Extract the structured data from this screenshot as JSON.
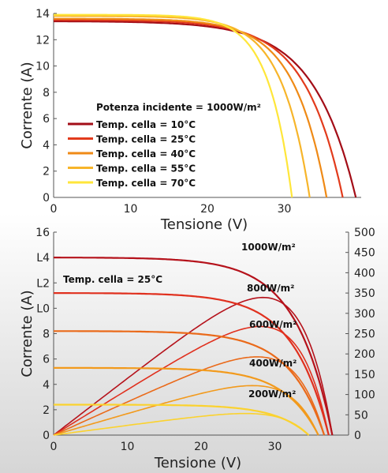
{
  "colors": {
    "t10": "#a30d17",
    "t25": "#e23b1c",
    "t40": "#ef8a16",
    "t55": "#f7b52a",
    "t70": "#ffe63a",
    "irr_1000": "#b5121b",
    "irr_800": "#e0301e",
    "irr_600": "#ea6a1a",
    "irr_400": "#f29a1c",
    "irr_200": "#fbd22e"
  },
  "chart_data": [
    {
      "type": "line",
      "title": "",
      "xlabel": "Tensione (V)",
      "ylabel": "Corrente (A)",
      "xlim": [
        0,
        40
      ],
      "ylim": [
        0,
        14
      ],
      "xticks": [
        "0",
        "10",
        "20",
        "30"
      ],
      "yticks": [
        "0",
        "2",
        "4",
        "6",
        "8",
        "10",
        "12",
        "14"
      ],
      "legend_title": "Potenza incidente = 1000W/m²",
      "legend_position": "bottom-left",
      "series": [
        {
          "name": "Temp. cella = 10°C",
          "color_key": "t10",
          "isc": 13.4,
          "voc": 39.3,
          "knee": 0.14
        },
        {
          "name": "Temp. cella = 25°C",
          "color_key": "t25",
          "isc": 13.5,
          "voc": 37.6,
          "knee": 0.13
        },
        {
          "name": "Temp. cella = 40°C",
          "color_key": "t40",
          "isc": 13.6,
          "voc": 35.5,
          "knee": 0.12
        },
        {
          "name": "Temp. cella = 55°C",
          "color_key": "t55",
          "isc": 13.8,
          "voc": 33.3,
          "knee": 0.11
        },
        {
          "name": "Temp. cella = 70°C",
          "color_key": "t70",
          "isc": 13.9,
          "voc": 31.0,
          "knee": 0.1
        }
      ]
    },
    {
      "type": "line",
      "title": "",
      "xlabel": "Tensione (V)",
      "ylabel": "Corrente (A)",
      "xlim": [
        0,
        40
      ],
      "ylim": [
        0,
        16
      ],
      "y2lim": [
        0,
        500
      ],
      "xticks": [
        "0",
        "10",
        "20",
        "30"
      ],
      "yticks": [
        "0",
        "2",
        "4",
        "6",
        "8",
        "L0",
        "L2",
        "L4",
        "16"
      ],
      "y2ticks": [
        "0",
        "50",
        "100",
        "150",
        "200",
        "250",
        "300",
        "350",
        "400",
        "450",
        "500"
      ],
      "condition_label": "Temp. cella = 25°C",
      "series": [
        {
          "name": "1000W/m²",
          "color_key": "irr_1000",
          "isc": 14.0,
          "voc": 37.8,
          "knee": 0.13
        },
        {
          "name": "800W/m²",
          "color_key": "irr_800",
          "isc": 11.2,
          "voc": 37.3,
          "knee": 0.13
        },
        {
          "name": "600W/m²",
          "color_key": "irr_600",
          "isc": 8.2,
          "voc": 36.7,
          "knee": 0.13
        },
        {
          "name": "400W/m²",
          "color_key": "irr_400",
          "isc": 5.3,
          "voc": 35.9,
          "knee": 0.13
        },
        {
          "name": "200W/m²",
          "color_key": "irr_200",
          "isc": 2.4,
          "voc": 34.6,
          "knee": 0.13
        }
      ]
    }
  ]
}
